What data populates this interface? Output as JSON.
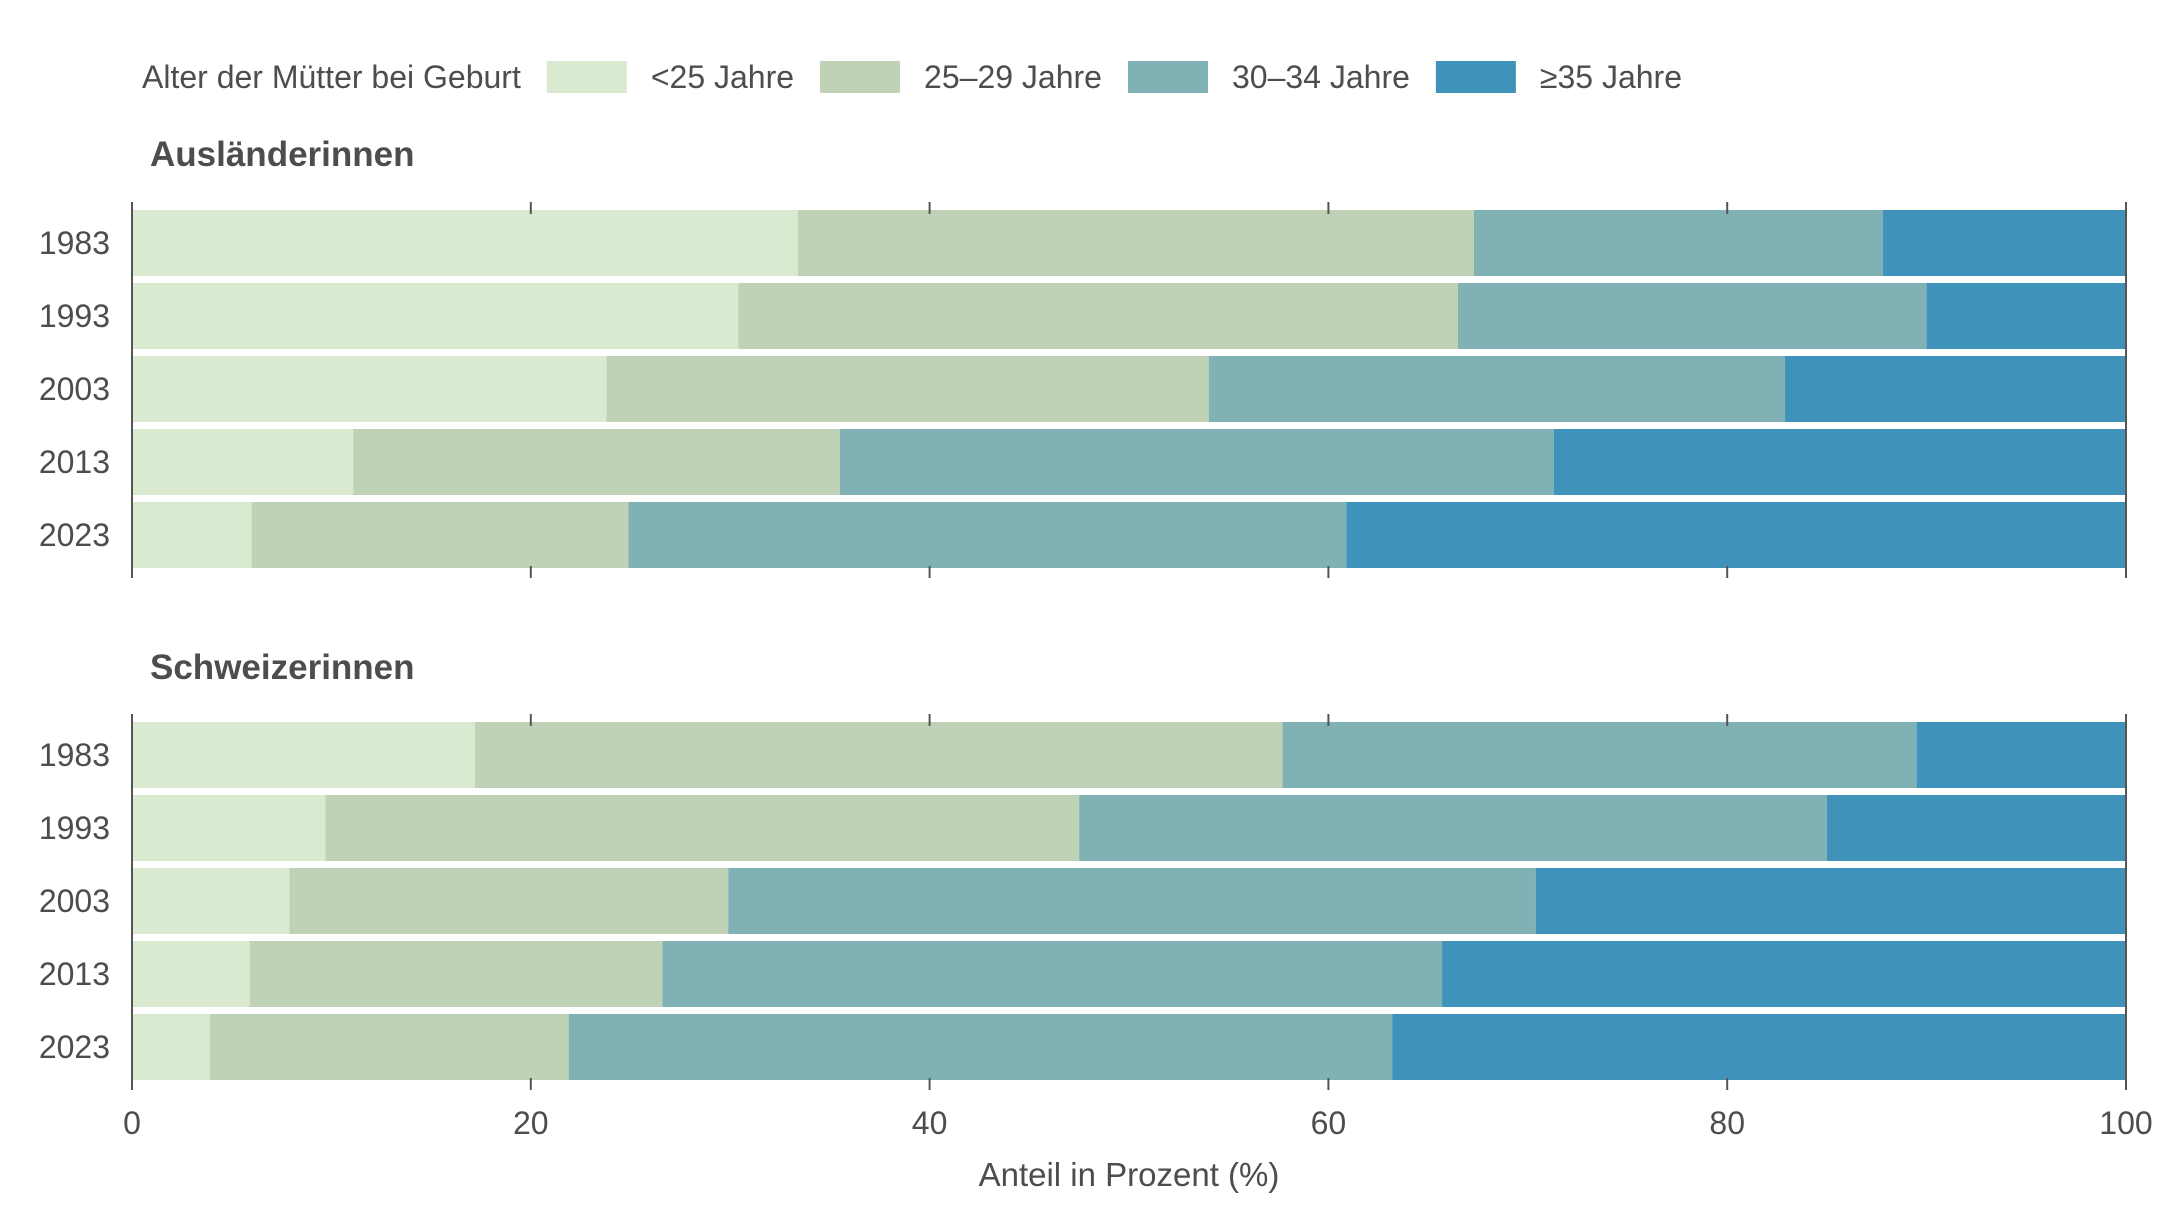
{
  "chart_data": {
    "type": "bar",
    "orientation": "horizontal",
    "stacked": true,
    "legend": {
      "title": "Alter der Mütter bei Geburt",
      "position": "top-left"
    },
    "series": [
      {
        "name": "<25 Jahre",
        "color": "#d9ead0"
      },
      {
        "name": "25–29 Jahre",
        "color": "#c0d2b5"
      },
      {
        "name": "30–34 Jahre",
        "color": "#80b1b5"
      },
      {
        "name": "≥35 Jahre",
        "color": "#3f93ba"
      }
    ],
    "xlabel": "Anteil in Prozent (%)",
    "xlim": [
      0,
      100
    ],
    "xticks": [
      0,
      20,
      40,
      60,
      80,
      100
    ],
    "panels": [
      {
        "title": "Ausländerinnen",
        "categories": [
          "1983",
          "1993",
          "2003",
          "2013",
          "2023"
        ],
        "values": [
          [
            33.4,
            33.9,
            20.5,
            12.2
          ],
          [
            30.4,
            36.1,
            23.5,
            10.0
          ],
          [
            23.8,
            30.2,
            28.9,
            17.1
          ],
          [
            11.1,
            24.4,
            35.8,
            28.7
          ],
          [
            6.0,
            18.9,
            36.0,
            39.1
          ]
        ]
      },
      {
        "title": "Schweizerinnen",
        "categories": [
          "1983",
          "1993",
          "2003",
          "2013",
          "2023"
        ],
        "values": [
          [
            17.2,
            40.5,
            31.8,
            10.5
          ],
          [
            9.7,
            37.8,
            37.5,
            15.0
          ],
          [
            7.9,
            22.0,
            40.5,
            29.6
          ],
          [
            5.9,
            20.7,
            39.1,
            34.3
          ],
          [
            3.9,
            18.0,
            41.3,
            36.8
          ]
        ]
      }
    ]
  }
}
